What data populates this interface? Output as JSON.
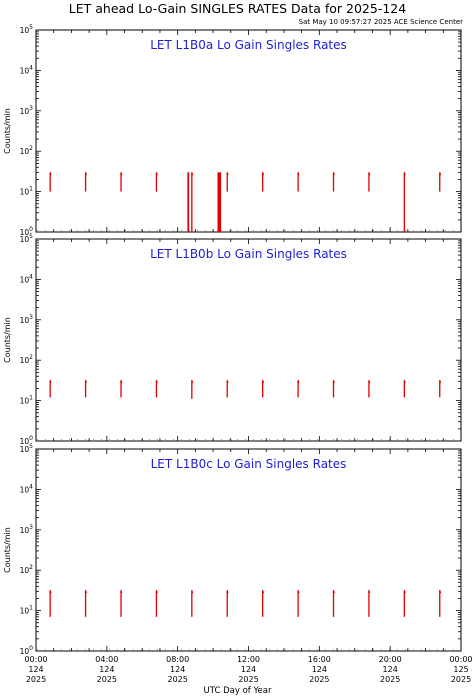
{
  "header": {
    "title": "LET ahead Lo-Gain SINGLES RATES Data for 2025-124",
    "timestamp": "Sat May 10 09:57:27 2025 ACE Science Center"
  },
  "chart_data": {
    "type": "line",
    "xlabel": "UTC Day of Year",
    "ylabel": "Counts/min",
    "xlim_hours": [
      0,
      24
    ],
    "ylim": [
      1,
      100000
    ],
    "y_scale": "log",
    "y_tick_labels": [
      {
        "value": 1,
        "exp": "0"
      },
      {
        "value": 10,
        "exp": "1"
      },
      {
        "value": 100,
        "exp": "2"
      },
      {
        "value": 1000,
        "exp": "3"
      },
      {
        "value": 10000,
        "exp": "4"
      },
      {
        "value": 100000,
        "exp": "5"
      }
    ],
    "x_ticks": [
      {
        "hour": 0,
        "time": "00:00",
        "doy": "124",
        "year": "2025"
      },
      {
        "hour": 4,
        "time": "04:00",
        "doy": "124",
        "year": "2025"
      },
      {
        "hour": 8,
        "time": "08:00",
        "doy": "124",
        "year": "2025"
      },
      {
        "hour": 12,
        "time": "12:00",
        "doy": "124",
        "year": "2025"
      },
      {
        "hour": 16,
        "time": "16:00",
        "doy": "124",
        "year": "2025"
      },
      {
        "hour": 20,
        "time": "20:00",
        "doy": "124",
        "year": "2025"
      },
      {
        "hour": 24,
        "time": "00:00",
        "doy": "125",
        "year": "2025"
      }
    ],
    "series_color": "#e00000",
    "panels": [
      {
        "title": "LET L1B0a Lo Gain Singles Rates",
        "bursts": [
          {
            "hour": 0.8,
            "low": 10,
            "high": 30
          },
          {
            "hour": 2.8,
            "low": 10,
            "high": 30
          },
          {
            "hour": 4.8,
            "low": 10,
            "high": 30
          },
          {
            "hour": 6.8,
            "low": 10,
            "high": 30
          },
          {
            "hour": 8.8,
            "low": 1,
            "high": 30
          },
          {
            "hour": 10.8,
            "low": 10,
            "high": 30
          },
          {
            "hour": 12.8,
            "low": 10,
            "high": 30
          },
          {
            "hour": 14.8,
            "low": 10,
            "high": 30
          },
          {
            "hour": 16.8,
            "low": 10,
            "high": 30
          },
          {
            "hour": 18.8,
            "low": 10,
            "high": 30
          },
          {
            "hour": 20.8,
            "low": 1,
            "high": 30
          },
          {
            "hour": 22.8,
            "low": 10,
            "high": 30
          }
        ],
        "dropouts": [
          {
            "hour_start": 8.55,
            "hour_end": 8.65
          },
          {
            "hour_start": 10.25,
            "hour_end": 10.45
          }
        ]
      },
      {
        "title": "LET L1B0b Lo Gain Singles Rates",
        "bursts": [
          {
            "hour": 0.8,
            "low": 12,
            "high": 32
          },
          {
            "hour": 2.8,
            "low": 12,
            "high": 32
          },
          {
            "hour": 4.8,
            "low": 12,
            "high": 32
          },
          {
            "hour": 6.8,
            "low": 12,
            "high": 32
          },
          {
            "hour": 8.8,
            "low": 11,
            "high": 32
          },
          {
            "hour": 10.8,
            "low": 12,
            "high": 32
          },
          {
            "hour": 12.8,
            "low": 12,
            "high": 32
          },
          {
            "hour": 14.8,
            "low": 12,
            "high": 32
          },
          {
            "hour": 16.8,
            "low": 12,
            "high": 32
          },
          {
            "hour": 18.8,
            "low": 12,
            "high": 32
          },
          {
            "hour": 20.8,
            "low": 12,
            "high": 32
          },
          {
            "hour": 22.8,
            "low": 12,
            "high": 32
          }
        ],
        "dropouts": []
      },
      {
        "title": "LET L1B0c Lo Gain Singles Rates",
        "bursts": [
          {
            "hour": 0.8,
            "low": 7,
            "high": 32
          },
          {
            "hour": 2.8,
            "low": 7,
            "high": 32
          },
          {
            "hour": 4.8,
            "low": 7,
            "high": 32
          },
          {
            "hour": 6.8,
            "low": 7,
            "high": 32
          },
          {
            "hour": 8.8,
            "low": 7,
            "high": 32
          },
          {
            "hour": 10.8,
            "low": 7,
            "high": 32
          },
          {
            "hour": 12.8,
            "low": 7,
            "high": 32
          },
          {
            "hour": 14.8,
            "low": 7,
            "high": 32
          },
          {
            "hour": 16.8,
            "low": 7,
            "high": 32
          },
          {
            "hour": 18.8,
            "low": 7,
            "high": 32
          },
          {
            "hour": 20.8,
            "low": 7,
            "high": 32
          },
          {
            "hour": 22.8,
            "low": 7,
            "high": 32
          }
        ],
        "dropouts": []
      }
    ]
  }
}
